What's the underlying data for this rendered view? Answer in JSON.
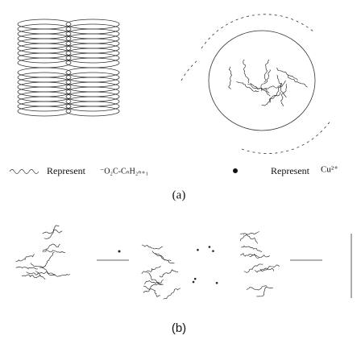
{
  "legend": [
    {
      "label": "Represent",
      "meaning": "⁻O₂C-CₙH₂ₙ₊₁"
    },
    {
      "label": "Represent",
      "meaning": "Cu²⁺"
    }
  ],
  "panels": [
    {
      "label": "(a)"
    },
    {
      "label": "(b)"
    }
  ]
}
